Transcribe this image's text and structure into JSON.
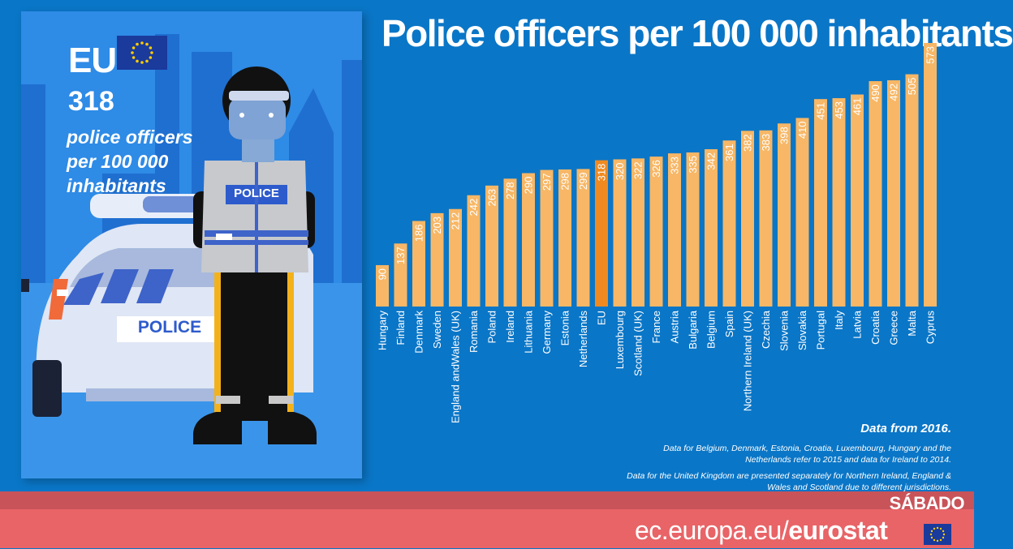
{
  "title": "Police officers per 100 000 inhabitants",
  "card": {
    "eu_label": "EU",
    "eu_value": "318",
    "eu_desc_1": "police officers",
    "eu_desc_2": "per 100 000",
    "eu_desc_3": "inhabitants",
    "car_label": "POLICE",
    "vest_label": "POLICE"
  },
  "chart_data": {
    "type": "bar",
    "title": "Police officers per 100 000 inhabitants",
    "categories": [
      "Hungary",
      "Finland",
      "Denmark",
      "Sweden",
      "England andWales (UK)",
      "Romania",
      "Poland",
      "Ireland",
      "Lithuania",
      "Germany",
      "Estonia",
      "Netherlands",
      "EU",
      "Luxembourg",
      "Scotland (UK)",
      "France",
      "Austria",
      "Bulgaria",
      "Belgium",
      "Spain",
      "Northern Ireland (UK)",
      "Czechia",
      "Slovenia",
      "Slovakia",
      "Portugal",
      "Italy",
      "Latvia",
      "Croatia",
      "Greece",
      "Malta",
      "Cyprus"
    ],
    "values": [
      90,
      137,
      186,
      203,
      212,
      242,
      263,
      278,
      290,
      297,
      298,
      299,
      318,
      320,
      322,
      326,
      333,
      335,
      342,
      361,
      382,
      383,
      398,
      410,
      451,
      453,
      461,
      490,
      492,
      505,
      573
    ],
    "highlight": "EU",
    "colors": {
      "bar": "#f7b766",
      "highlight": "#f08a20"
    },
    "ylim": [
      0,
      573
    ]
  },
  "notes": {
    "heading": "Data from 2016.",
    "line1": "Data for Belgium, Denmark, Estonia, Croatia, Luxembourg, Hungary and the Netherlands refer to 2015 and data for Ireland to 2014.",
    "line2": "Data for the United Kingdom are presented separately for Northern Ireland, England & Wales and Scotland due to different jurisdictions."
  },
  "footer": {
    "stamp": "SÁBADO",
    "url_prefix": "ec.europa.eu/",
    "url_bold": "eurostat"
  }
}
